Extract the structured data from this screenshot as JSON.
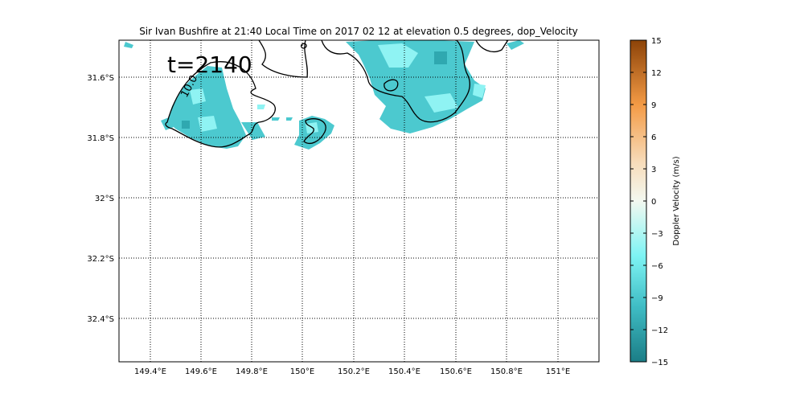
{
  "title": "Sir Ivan Bushfire at 21:40 Local Time on 2017 02 12 at elevation 0.5 degrees, dop_Velocity",
  "time_label": "t=2140",
  "contour_label": "10.0",
  "colorbar": {
    "label": "Doppler Velocity (m/s)",
    "ticks": [
      "15",
      "12",
      "9",
      "6",
      "3",
      "0",
      "−3",
      "−6",
      "−9",
      "−12",
      "−15"
    ],
    "range": [
      -15,
      15
    ],
    "colors": [
      "#1b7d86",
      "#3fbcc4",
      "#7ef4f4",
      "#e9fbf9",
      "#f6e6cf",
      "#f39a45",
      "#8c4308"
    ]
  },
  "map": {
    "lon_ticks": [
      "149.4°E",
      "149.6°E",
      "149.8°E",
      "150°E",
      "150.2°E",
      "150.4°E",
      "150.6°E",
      "150.8°E",
      "151°E"
    ],
    "lat_ticks": [
      "31.6°S",
      "31.8°S",
      "32°S",
      "32.2°S",
      "32.4°S"
    ],
    "grid": "dotted",
    "echo_color": "#4cc9cf"
  }
}
